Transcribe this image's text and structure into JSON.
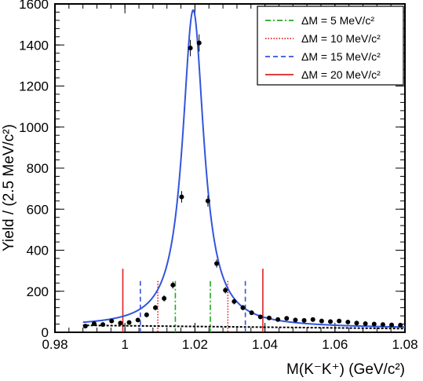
{
  "chart_data": {
    "type": "scatter",
    "xlabel": "M(K⁻K⁺) (GeV/c²)",
    "ylabel": "Yield / (2.5 MeV/c²)",
    "xlim": [
      0.98,
      1.08
    ],
    "ylim": [
      0,
      1600
    ],
    "x_ticks": [
      "0.98",
      "1",
      "1.02",
      "1.04",
      "1.06",
      "1.08"
    ],
    "y_ticks": [
      "0",
      "200",
      "400",
      "600",
      "800",
      "1000",
      "1200",
      "1400",
      "1600"
    ],
    "legend_placement": "top-right",
    "data_points": {
      "x": [
        0.9887,
        0.9912,
        0.9937,
        0.9962,
        0.9987,
        1.0012,
        1.0037,
        1.0062,
        1.0087,
        1.0112,
        1.0137,
        1.0162,
        1.0187,
        1.0212,
        1.0237,
        1.0262,
        1.0287,
        1.0312,
        1.0337,
        1.0362,
        1.0387,
        1.0412,
        1.0437,
        1.0462,
        1.0487,
        1.0512,
        1.0537,
        1.0562,
        1.0587,
        1.0612,
        1.0637,
        1.0662,
        1.0687,
        1.0712,
        1.0737,
        1.0762,
        1.0787
      ],
      "y": [
        30,
        42,
        38,
        55,
        45,
        48,
        60,
        85,
        120,
        165,
        230,
        660,
        1385,
        1410,
        640,
        335,
        205,
        150,
        120,
        95,
        75,
        70,
        62,
        68,
        60,
        58,
        62,
        55,
        52,
        55,
        50,
        45,
        42,
        40,
        38,
        36,
        35
      ],
      "yerr": [
        8,
        9,
        9,
        10,
        9,
        9,
        10,
        12,
        13,
        15,
        17,
        28,
        40,
        42,
        27,
        20,
        16,
        14,
        13,
        11,
        10,
        10,
        9,
        10,
        9,
        9,
        9,
        9,
        8,
        9,
        8,
        8,
        8,
        7,
        7,
        7,
        7
      ]
    },
    "fit_curve": {
      "color": "#3355dd",
      "peak_x": 1.0195,
      "peak_y": 1570,
      "width": 0.0037,
      "background_start": 28,
      "background_end": 20
    },
    "background_curve": {
      "color": "#000000",
      "x": [
        0.988,
        1.08
      ],
      "y": [
        34,
        18
      ]
    },
    "window_lines": [
      {
        "label": "ΔM = 5 MeV/c²",
        "color": "#22aa22",
        "style": "dashdot",
        "x": [
          1.0144,
          1.0244
        ],
        "height": 250
      },
      {
        "label": "ΔM = 10 MeV/c²",
        "color": "#dd2222",
        "style": "dotted",
        "x": [
          1.0094,
          1.0294
        ],
        "height": 250
      },
      {
        "label": "ΔM = 15 MeV/c²",
        "color": "#3355dd",
        "style": "dashed",
        "x": [
          1.0044,
          1.0344
        ],
        "height": 250
      },
      {
        "label": "ΔM = 20 MeV/c²",
        "color": "#dd2222",
        "style": "solid",
        "x": [
          0.9994,
          1.0394
        ],
        "height": 310
      }
    ]
  }
}
